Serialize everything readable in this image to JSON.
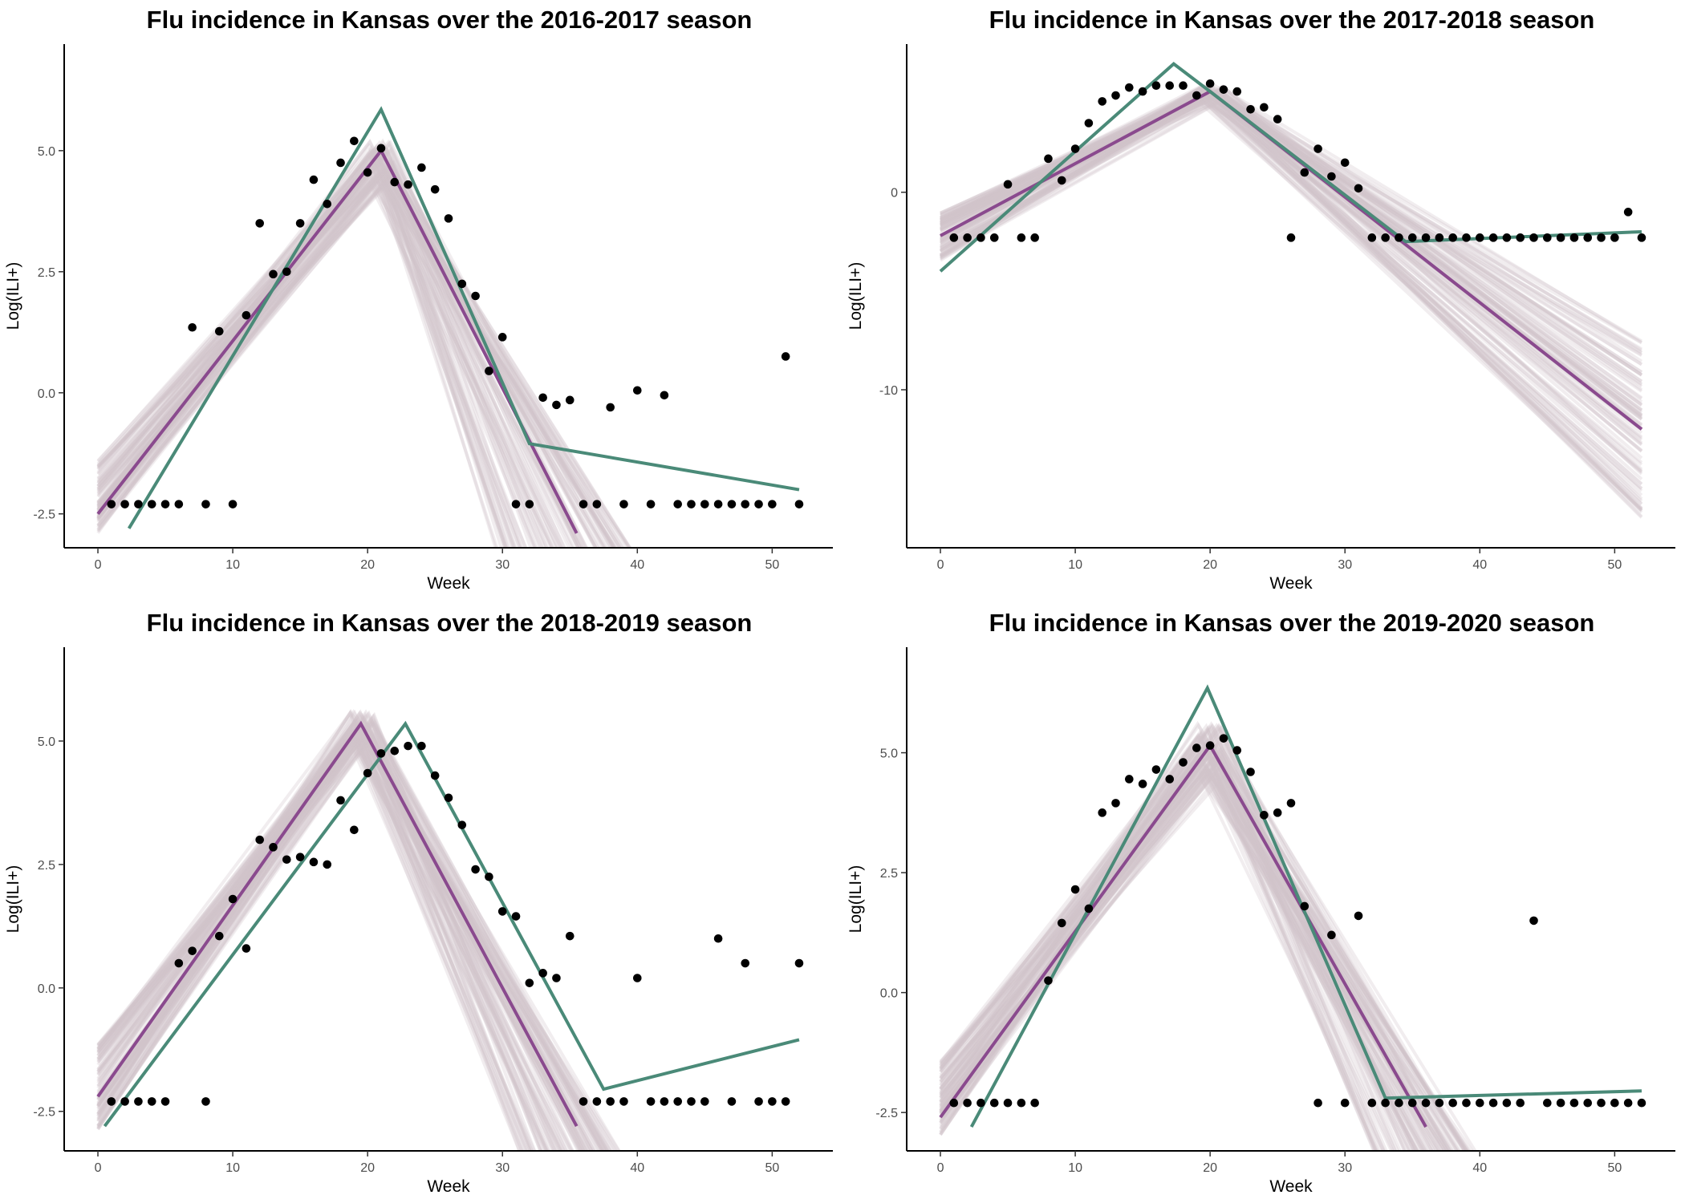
{
  "chart_data": [
    {
      "type": "line",
      "title": "Flu incidence in Kansas over the 2016-2017 season",
      "xlabel": "Week",
      "ylabel": "Log(ILI+)",
      "xlim": [
        -2.5,
        54.5
      ],
      "ylim": [
        -3.2,
        7.2
      ],
      "xticks": [
        0,
        10,
        20,
        30,
        40,
        50
      ],
      "xtick_labels": [
        "0",
        "10",
        "20",
        "30",
        "40",
        "50"
      ],
      "yticks": [
        -2.5,
        0,
        2.5,
        5
      ],
      "ytick_labels": [
        "-2.5",
        "0.0",
        "2.5",
        "5.0"
      ],
      "grid": false,
      "colors": {
        "observed": "#000000",
        "fit": "#8a4a8e",
        "alternative": "#4a8a78",
        "posterior": "#cfc5c9"
      },
      "series": [
        {
          "kind": "scatter",
          "x": [
            1,
            2,
            3,
            4,
            5,
            6,
            7,
            8,
            9,
            10,
            11,
            12,
            13,
            14,
            15,
            16,
            17,
            18,
            19,
            20,
            21,
            22,
            23,
            24,
            25,
            26,
            27,
            28,
            29,
            30,
            31,
            32,
            33,
            34,
            35,
            36,
            37,
            38,
            39,
            40,
            41,
            42,
            43,
            44,
            45,
            46,
            47,
            48,
            49,
            50,
            51,
            52
          ],
          "y": [
            -2.3,
            -2.3,
            -2.3,
            -2.3,
            -2.3,
            -2.3,
            1.35,
            -2.3,
            1.27,
            -2.3,
            1.6,
            3.5,
            2.45,
            2.5,
            3.5,
            4.4,
            3.9,
            4.75,
            5.2,
            4.55,
            5.05,
            4.35,
            4.3,
            4.65,
            4.2,
            3.6,
            2.25,
            2.0,
            0.45,
            1.15,
            -2.3,
            -2.3,
            -0.1,
            -0.25,
            -0.15,
            -2.3,
            -2.3,
            -0.3,
            -2.3,
            0.05,
            -2.3,
            -0.05,
            -2.3,
            -2.3,
            -2.3,
            -2.3,
            -2.3,
            -2.3,
            -2.3,
            -2.3,
            0.75,
            -2.3
          ]
        },
        {
          "kind": "line",
          "role": "fit",
          "x": [
            0,
            21,
            35.5
          ],
          "y": [
            -2.5,
            5.0,
            -2.9
          ]
        },
        {
          "kind": "line",
          "role": "alternative",
          "x": [
            2.3,
            21,
            32,
            52
          ],
          "y": [
            -2.8,
            5.85,
            -1.05,
            -2.0
          ]
        },
        {
          "kind": "band",
          "role": "posterior",
          "peak_x": [
            20,
            22
          ],
          "peak_y": [
            4.3,
            5.2
          ],
          "start_y": [
            -2.9,
            -1.4
          ],
          "end_x": [
            30,
            41
          ]
        }
      ]
    },
    {
      "type": "line",
      "title": "Flu incidence in Kansas over the 2017-2018 season",
      "xlabel": "Week",
      "ylabel": "Log(ILI+)",
      "xlim": [
        -2.5,
        54.5
      ],
      "ylim": [
        -18,
        7.5
      ],
      "xticks": [
        0,
        10,
        20,
        30,
        40,
        50
      ],
      "xtick_labels": [
        "0",
        "10",
        "20",
        "30",
        "40",
        "50"
      ],
      "yticks": [
        -10,
        0
      ],
      "ytick_labels": [
        "-10",
        "0"
      ],
      "grid": false,
      "colors": {
        "observed": "#000000",
        "fit": "#8a4a8e",
        "alternative": "#4a8a78",
        "posterior": "#cfc5c9"
      },
      "series": [
        {
          "kind": "scatter",
          "x": [
            1,
            2,
            3,
            4,
            5,
            6,
            7,
            8,
            9,
            10,
            11,
            12,
            13,
            14,
            15,
            16,
            17,
            18,
            19,
            20,
            21,
            22,
            23,
            24,
            25,
            26,
            27,
            28,
            29,
            30,
            31,
            32,
            33,
            34,
            35,
            36,
            37,
            38,
            39,
            40,
            41,
            42,
            43,
            44,
            45,
            46,
            47,
            48,
            49,
            50,
            51,
            52
          ],
          "y": [
            -2.3,
            -2.3,
            -2.3,
            -2.3,
            0.4,
            -2.3,
            -2.3,
            1.7,
            0.6,
            2.2,
            3.5,
            4.6,
            4.9,
            5.3,
            5.1,
            5.4,
            5.4,
            5.4,
            4.9,
            5.5,
            5.2,
            5.1,
            4.2,
            4.3,
            3.7,
            -2.3,
            1.0,
            2.2,
            0.8,
            1.5,
            0.2,
            -2.3,
            -2.3,
            -2.3,
            -2.3,
            -2.3,
            -2.3,
            -2.3,
            -2.3,
            -2.3,
            -2.3,
            -2.3,
            -2.3,
            -2.3,
            -2.3,
            -2.3,
            -2.3,
            -2.3,
            -2.3,
            -2.3,
            -1.0,
            -2.3
          ]
        },
        {
          "kind": "line",
          "role": "fit",
          "x": [
            0,
            20,
            52
          ],
          "y": [
            -2.2,
            5.1,
            -12.0
          ]
        },
        {
          "kind": "line",
          "role": "alternative",
          "x": [
            0,
            17.3,
            20,
            34.5,
            52
          ],
          "y": [
            -4.0,
            6.5,
            5.1,
            -2.5,
            -2.0
          ]
        },
        {
          "kind": "band",
          "role": "posterior",
          "peak_x": [
            19,
            21
          ],
          "peak_y": [
            4.6,
            5.4
          ],
          "start_y": [
            -3.5,
            -1.0
          ],
          "end_x": [
            52,
            52
          ],
          "end_y": [
            -16.5,
            -7.5
          ]
        }
      ]
    },
    {
      "type": "line",
      "title": "Flu incidence in Kansas over the 2018-2019 season",
      "xlabel": "Week",
      "ylabel": "Log(ILI+)",
      "xlim": [
        -2.5,
        54.5
      ],
      "ylim": [
        -3.3,
        6.9
      ],
      "xticks": [
        0,
        10,
        20,
        30,
        40,
        50
      ],
      "xtick_labels": [
        "0",
        "10",
        "20",
        "30",
        "40",
        "50"
      ],
      "yticks": [
        -2.5,
        0,
        2.5,
        5
      ],
      "ytick_labels": [
        "-2.5",
        "0.0",
        "2.5",
        "5.0"
      ],
      "grid": false,
      "colors": {
        "observed": "#000000",
        "fit": "#8a4a8e",
        "alternative": "#4a8a78",
        "posterior": "#cfc5c9"
      },
      "series": [
        {
          "kind": "scatter",
          "x": [
            1,
            2,
            3,
            4,
            5,
            6,
            7,
            8,
            9,
            10,
            11,
            12,
            13,
            14,
            15,
            16,
            17,
            18,
            19,
            20,
            21,
            22,
            23,
            24,
            25,
            26,
            27,
            28,
            29,
            30,
            31,
            32,
            33,
            34,
            35,
            36,
            37,
            38,
            39,
            40,
            41,
            42,
            43,
            44,
            45,
            46,
            47,
            48,
            49,
            50,
            51,
            52
          ],
          "y": [
            -2.3,
            -2.3,
            -2.3,
            -2.3,
            -2.3,
            0.5,
            0.75,
            -2.3,
            1.05,
            1.8,
            0.8,
            3.0,
            2.85,
            2.6,
            2.65,
            2.55,
            2.5,
            3.8,
            3.2,
            4.35,
            4.75,
            4.8,
            4.9,
            4.9,
            4.3,
            3.85,
            3.3,
            2.4,
            2.25,
            1.55,
            1.45,
            0.1,
            0.3,
            0.2,
            1.05,
            -2.3,
            -2.3,
            -2.3,
            -2.3,
            0.2,
            -2.3,
            -2.3,
            -2.3,
            -2.3,
            -2.3,
            1.0,
            -2.3,
            0.5,
            -2.3,
            -2.3,
            -2.3,
            0.5
          ]
        },
        {
          "kind": "line",
          "role": "fit",
          "x": [
            0,
            19.5,
            35.5
          ],
          "y": [
            -2.2,
            5.35,
            -2.8
          ]
        },
        {
          "kind": "line",
          "role": "alternative",
          "x": [
            0.5,
            22.8,
            37.5,
            52
          ],
          "y": [
            -2.8,
            5.35,
            -2.05,
            -1.05
          ]
        },
        {
          "kind": "band",
          "role": "posterior",
          "peak_x": [
            18.5,
            20.5
          ],
          "peak_y": [
            5.0,
            5.6
          ],
          "start_y": [
            -2.9,
            -1.1
          ],
          "end_x": [
            32,
            40
          ]
        }
      ]
    },
    {
      "type": "line",
      "title": "Flu incidence in Kansas over the 2019-2020 season",
      "xlabel": "Week",
      "ylabel": "Log(ILI+)",
      "xlim": [
        -2.5,
        54.5
      ],
      "ylim": [
        -3.3,
        7.2
      ],
      "xticks": [
        0,
        10,
        20,
        30,
        40,
        50
      ],
      "xtick_labels": [
        "0",
        "10",
        "20",
        "30",
        "40",
        "50"
      ],
      "yticks": [
        -2.5,
        0,
        2.5,
        5
      ],
      "ytick_labels": [
        "-2.5",
        "0.0",
        "2.5",
        "5.0"
      ],
      "grid": false,
      "colors": {
        "observed": "#000000",
        "fit": "#8a4a8e",
        "alternative": "#4a8a78",
        "posterior": "#cfc5c9"
      },
      "series": [
        {
          "kind": "scatter",
          "x": [
            1,
            2,
            3,
            4,
            5,
            6,
            7,
            8,
            9,
            10,
            11,
            12,
            13,
            14,
            15,
            16,
            17,
            18,
            19,
            20,
            21,
            22,
            23,
            24,
            25,
            26,
            27,
            28,
            29,
            30,
            31,
            32,
            33,
            34,
            35,
            36,
            37,
            38,
            39,
            40,
            41,
            42,
            43,
            44,
            45,
            46,
            47,
            48,
            49,
            50,
            51,
            52
          ],
          "y": [
            -2.3,
            -2.3,
            -2.3,
            -2.3,
            -2.3,
            -2.3,
            -2.3,
            0.25,
            1.45,
            2.15,
            1.75,
            3.75,
            3.95,
            4.45,
            4.35,
            4.65,
            4.45,
            4.8,
            5.1,
            5.15,
            5.3,
            5.05,
            4.6,
            3.7,
            3.75,
            3.95,
            1.8,
            -2.3,
            1.2,
            -2.3,
            1.6,
            -2.3,
            -2.3,
            -2.3,
            -2.3,
            -2.3,
            -2.3,
            -2.3,
            -2.3,
            -2.3,
            -2.3,
            -2.3,
            -2.3,
            1.5,
            -2.3,
            -2.3,
            -2.3,
            -2.3,
            -2.3,
            -2.3,
            -2.3,
            -2.3
          ]
        },
        {
          "kind": "line",
          "role": "fit",
          "x": [
            0,
            20,
            36
          ],
          "y": [
            -2.6,
            5.15,
            -2.8
          ]
        },
        {
          "kind": "line",
          "role": "alternative",
          "x": [
            2.3,
            19.8,
            33,
            52
          ],
          "y": [
            -2.8,
            6.35,
            -2.2,
            -2.05
          ]
        },
        {
          "kind": "band",
          "role": "posterior",
          "peak_x": [
            19,
            21
          ],
          "peak_y": [
            4.5,
            5.6
          ],
          "start_y": [
            -3.0,
            -1.4
          ],
          "end_x": [
            33,
            41
          ]
        }
      ]
    }
  ]
}
